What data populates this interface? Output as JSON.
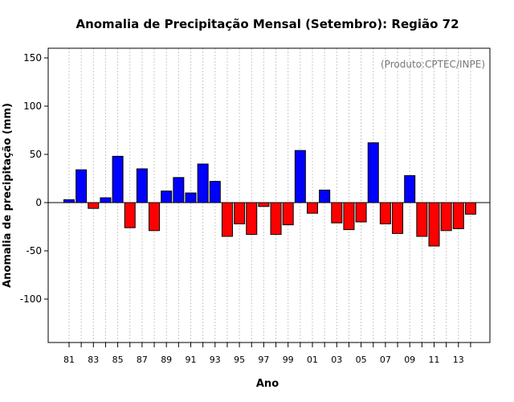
{
  "chart_data": {
    "type": "bar",
    "title": "Anomalia de Precipitação Mensal (Setembro): Região 72",
    "xlabel": "Ano",
    "ylabel": "Anomalia de precipitação (mm)",
    "credit": "(Produto:CPTEC/INPE)",
    "ylim": [
      -145,
      160
    ],
    "yticks": [
      -100,
      -50,
      0,
      50,
      100,
      150
    ],
    "xtick_labels": [
      "81",
      "83",
      "85",
      "87",
      "89",
      "91",
      "93",
      "95",
      "97",
      "99",
      "01",
      "03",
      "05",
      "07",
      "09",
      "11",
      "13"
    ],
    "categories": [
      "1981",
      "1982",
      "1983",
      "1984",
      "1985",
      "1986",
      "1987",
      "1988",
      "1989",
      "1990",
      "1991",
      "1992",
      "1993",
      "1994",
      "1995",
      "1996",
      "1997",
      "1998",
      "1999",
      "2000",
      "2001",
      "2002",
      "2003",
      "2004",
      "2005",
      "2006",
      "2007",
      "2008",
      "2009",
      "2010",
      "2011",
      "2012",
      "2013",
      "2014"
    ],
    "values": [
      3,
      34,
      -6,
      5,
      48,
      -26,
      35,
      -29,
      12,
      26,
      10,
      40,
      22,
      -35,
      -22,
      -33,
      -4,
      -33,
      -23,
      54,
      -11,
      13,
      -21,
      -28,
      -20,
      62,
      -22,
      -32,
      28,
      -35,
      -45,
      -29,
      -27,
      -12
    ],
    "colors": {
      "positive": "#0000ff",
      "negative": "#ff0000",
      "grid": "#c8c8c8",
      "axis": "#000000",
      "credit": "#777777"
    }
  }
}
